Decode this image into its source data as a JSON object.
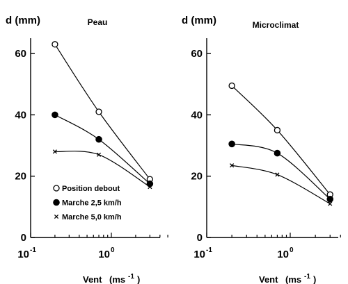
{
  "chart_data": [
    {
      "type": "line",
      "title": "Peau",
      "ylabel": "d (mm)",
      "xlabel": "Vent",
      "xunit": "(ms",
      "xunit_exp": "-1",
      "xunit_close": ")",
      "xscale": "log",
      "xlim": [
        0.1,
        5
      ],
      "ylim": [
        0,
        65
      ],
      "y_ticks": [
        0,
        20,
        40,
        60
      ],
      "x_ticks": [
        {
          "base": "10",
          "exp": "-1"
        },
        {
          "base": "10",
          "exp": "0"
        }
      ],
      "legend_position": "bottom-left",
      "series": [
        {
          "name": "Position debout",
          "marker": "open-circle",
          "x": [
            0.2,
            0.7,
            3.0
          ],
          "y": [
            63,
            41,
            19
          ]
        },
        {
          "name": "Marche 2,5 km/h",
          "marker": "filled-circle",
          "x": [
            0.2,
            0.7,
            3.0
          ],
          "y": [
            40,
            32,
            17.5
          ]
        },
        {
          "name": "Marche 5,0 km/h",
          "marker": "cross",
          "x": [
            0.2,
            0.7,
            3.0
          ],
          "y": [
            28,
            27,
            16.5
          ]
        }
      ]
    },
    {
      "type": "line",
      "title": "Microclimat",
      "ylabel": "d (mm)",
      "xlabel": "Vent",
      "xunit": "(ms",
      "xunit_exp": "-1",
      "xunit_close": ")",
      "xscale": "log",
      "xlim": [
        0.1,
        5
      ],
      "ylim": [
        0,
        65
      ],
      "y_ticks": [
        0,
        20,
        40,
        60
      ],
      "x_ticks": [
        {
          "base": "10",
          "exp": "-1"
        },
        {
          "base": "10",
          "exp": "0"
        }
      ],
      "series": [
        {
          "marker": "open-circle",
          "x": [
            0.2,
            0.7,
            3.0
          ],
          "y": [
            49.5,
            35,
            14
          ]
        },
        {
          "marker": "filled-circle",
          "x": [
            0.2,
            0.7,
            3.0
          ],
          "y": [
            30.5,
            27.5,
            12.5
          ]
        },
        {
          "marker": "cross",
          "x": [
            0.2,
            0.7,
            3.0
          ],
          "y": [
            23.5,
            20.5,
            11
          ]
        }
      ]
    }
  ]
}
